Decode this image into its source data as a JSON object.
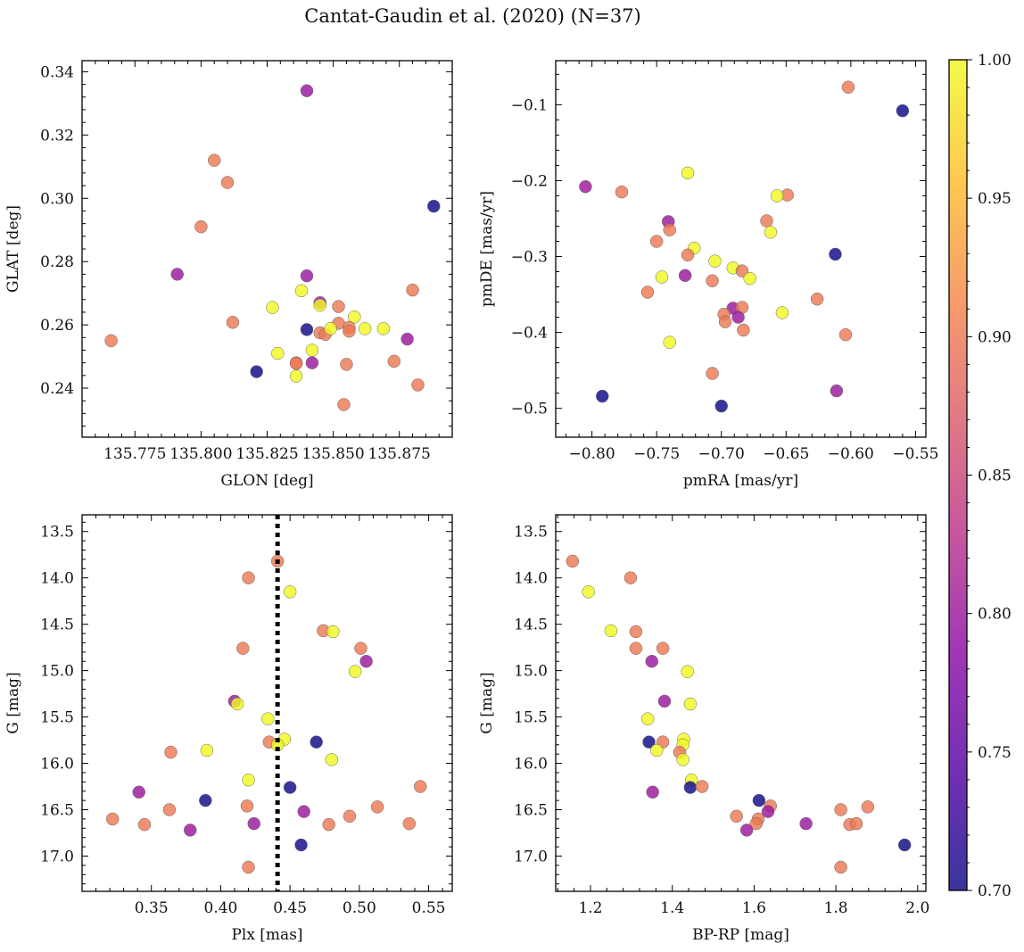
{
  "figure": {
    "title": "Cantat-Gaudin et al. (2020) (N=37)"
  },
  "colorbar": {
    "min": 0.7,
    "max": 1.0,
    "ticks": [
      "0.70",
      "0.75",
      "0.80",
      "0.85",
      "0.90",
      "0.95",
      "1.00"
    ],
    "tick_values": [
      0.7,
      0.75,
      0.8,
      0.85,
      0.9,
      0.95,
      1.0
    ],
    "colormap": "plasma",
    "stops": [
      "#0d0887",
      "#5302a3",
      "#8b0aa5",
      "#b83289",
      "#db5c68",
      "#f48849",
      "#febd2a",
      "#f0f921"
    ]
  },
  "chart_data": [
    {
      "type": "scatter",
      "name": "glon-glat",
      "xlabel": "GLON [deg]",
      "ylabel": "GLAT [deg]",
      "xlim": [
        135.755,
        135.895
      ],
      "ylim": [
        0.2245,
        0.3435
      ],
      "xticks": [
        135.775,
        135.8,
        135.825,
        135.85,
        135.875
      ],
      "xtick_labels": [
        "135.775",
        "135.800",
        "135.825",
        "135.850",
        "135.875"
      ],
      "yticks": [
        0.24,
        0.26,
        0.28,
        0.3,
        0.32,
        0.34
      ],
      "ytick_labels": [
        "0.24",
        "0.26",
        "0.28",
        "0.30",
        "0.32",
        "0.34"
      ],
      "points": [
        {
          "x": 135.766,
          "y": 0.255,
          "c": 0.9
        },
        {
          "x": 135.805,
          "y": 0.312,
          "c": 0.9
        },
        {
          "x": 135.81,
          "y": 0.305,
          "c": 0.9
        },
        {
          "x": 135.8,
          "y": 0.291,
          "c": 0.9
        },
        {
          "x": 135.791,
          "y": 0.276,
          "c": 0.8
        },
        {
          "x": 135.84,
          "y": 0.334,
          "c": 0.8
        },
        {
          "x": 135.888,
          "y": 0.2975,
          "c": 0.7
        },
        {
          "x": 135.84,
          "y": 0.2755,
          "c": 0.8
        },
        {
          "x": 135.812,
          "y": 0.2608,
          "c": 0.9
        },
        {
          "x": 135.827,
          "y": 0.2655,
          "c": 1.0
        },
        {
          "x": 135.838,
          "y": 0.2708,
          "c": 1.0
        },
        {
          "x": 135.845,
          "y": 0.267,
          "c": 0.8
        },
        {
          "x": 135.84,
          "y": 0.2585,
          "c": 0.7
        },
        {
          "x": 135.845,
          "y": 0.2575,
          "c": 0.9
        },
        {
          "x": 135.845,
          "y": 0.2662,
          "c": 1.0
        },
        {
          "x": 135.852,
          "y": 0.2658,
          "c": 0.9
        },
        {
          "x": 135.858,
          "y": 0.2625,
          "c": 1.0
        },
        {
          "x": 135.852,
          "y": 0.2605,
          "c": 0.9
        },
        {
          "x": 135.856,
          "y": 0.2592,
          "c": 0.9
        },
        {
          "x": 135.847,
          "y": 0.257,
          "c": 0.9
        },
        {
          "x": 135.849,
          "y": 0.2588,
          "c": 1.0
        },
        {
          "x": 135.862,
          "y": 0.2588,
          "c": 1.0
        },
        {
          "x": 135.869,
          "y": 0.2588,
          "c": 1.0
        },
        {
          "x": 135.856,
          "y": 0.258,
          "c": 0.9
        },
        {
          "x": 135.88,
          "y": 0.271,
          "c": 0.9
        },
        {
          "x": 135.878,
          "y": 0.2555,
          "c": 0.8
        },
        {
          "x": 135.829,
          "y": 0.251,
          "c": 1.0
        },
        {
          "x": 135.842,
          "y": 0.252,
          "c": 1.0
        },
        {
          "x": 135.836,
          "y": 0.248,
          "c": 0.9
        },
        {
          "x": 135.836,
          "y": 0.2478,
          "c": 0.9
        },
        {
          "x": 135.842,
          "y": 0.248,
          "c": 0.8
        },
        {
          "x": 135.855,
          "y": 0.2475,
          "c": 0.9
        },
        {
          "x": 135.873,
          "y": 0.2485,
          "c": 0.9
        },
        {
          "x": 135.882,
          "y": 0.241,
          "c": 0.9
        },
        {
          "x": 135.821,
          "y": 0.2452,
          "c": 0.7
        },
        {
          "x": 135.836,
          "y": 0.2438,
          "c": 1.0
        },
        {
          "x": 135.854,
          "y": 0.2348,
          "c": 0.9
        }
      ]
    },
    {
      "type": "scatter",
      "name": "pmra-pmde",
      "xlabel": "pmRA [mas/yr]",
      "ylabel": "pmDE [mas/yr]",
      "xlim": [
        -0.828,
        -0.542
      ],
      "ylim": [
        -0.538,
        -0.042
      ],
      "xticks": [
        -0.8,
        -0.75,
        -0.7,
        -0.65,
        -0.6,
        -0.55
      ],
      "xtick_labels": [
        "−0.80",
        "−0.75",
        "−0.70",
        "−0.65",
        "−0.60",
        "−0.55"
      ],
      "yticks": [
        -0.5,
        -0.4,
        -0.3,
        -0.2,
        -0.1
      ],
      "ytick_labels": [
        "−0.5",
        "−0.4",
        "−0.3",
        "−0.2",
        "−0.1"
      ],
      "points": [
        {
          "x": -0.602,
          "y": -0.077,
          "c": 0.9
        },
        {
          "x": -0.56,
          "y": -0.108,
          "c": 0.7
        },
        {
          "x": -0.726,
          "y": -0.19,
          "c": 1.0
        },
        {
          "x": -0.805,
          "y": -0.208,
          "c": 0.8
        },
        {
          "x": -0.777,
          "y": -0.215,
          "c": 0.9
        },
        {
          "x": -0.649,
          "y": -0.219,
          "c": 0.9
        },
        {
          "x": -0.657,
          "y": -0.22,
          "c": 1.0
        },
        {
          "x": -0.741,
          "y": -0.254,
          "c": 0.8
        },
        {
          "x": -0.665,
          "y": -0.253,
          "c": 0.9
        },
        {
          "x": -0.74,
          "y": -0.265,
          "c": 0.9
        },
        {
          "x": -0.662,
          "y": -0.268,
          "c": 1.0
        },
        {
          "x": -0.75,
          "y": -0.28,
          "c": 0.9
        },
        {
          "x": -0.721,
          "y": -0.289,
          "c": 1.0
        },
        {
          "x": -0.726,
          "y": -0.298,
          "c": 0.9
        },
        {
          "x": -0.612,
          "y": -0.297,
          "c": 0.7
        },
        {
          "x": -0.705,
          "y": -0.306,
          "c": 1.0
        },
        {
          "x": -0.691,
          "y": -0.315,
          "c": 1.0
        },
        {
          "x": -0.684,
          "y": -0.319,
          "c": 0.9
        },
        {
          "x": -0.746,
          "y": -0.327,
          "c": 1.0
        },
        {
          "x": -0.728,
          "y": -0.325,
          "c": 0.8
        },
        {
          "x": -0.678,
          "y": -0.329,
          "c": 1.0
        },
        {
          "x": -0.707,
          "y": -0.332,
          "c": 0.9
        },
        {
          "x": -0.757,
          "y": -0.347,
          "c": 0.9
        },
        {
          "x": -0.626,
          "y": -0.356,
          "c": 0.9
        },
        {
          "x": -0.691,
          "y": -0.368,
          "c": 0.8
        },
        {
          "x": -0.684,
          "y": -0.367,
          "c": 0.9
        },
        {
          "x": -0.653,
          "y": -0.374,
          "c": 1.0
        },
        {
          "x": -0.698,
          "y": -0.376,
          "c": 0.9
        },
        {
          "x": -0.687,
          "y": -0.38,
          "c": 0.8
        },
        {
          "x": -0.697,
          "y": -0.386,
          "c": 0.9
        },
        {
          "x": -0.683,
          "y": -0.397,
          "c": 0.9
        },
        {
          "x": -0.604,
          "y": -0.403,
          "c": 0.9
        },
        {
          "x": -0.74,
          "y": -0.413,
          "c": 1.0
        },
        {
          "x": -0.707,
          "y": -0.454,
          "c": 0.9
        },
        {
          "x": -0.611,
          "y": -0.477,
          "c": 0.8
        },
        {
          "x": -0.792,
          "y": -0.484,
          "c": 0.7
        },
        {
          "x": -0.7,
          "y": -0.497,
          "c": 0.7
        }
      ]
    },
    {
      "type": "scatter",
      "name": "plx-g",
      "xlabel": "Plx [mas]",
      "ylabel": "G [mag]",
      "xlim": [
        0.3,
        0.567
      ],
      "ylim": [
        17.38,
        13.32
      ],
      "y_inverted": true,
      "xticks": [
        0.35,
        0.4,
        0.45,
        0.5,
        0.55
      ],
      "xtick_labels": [
        "0.35",
        "0.40",
        "0.45",
        "0.50",
        "0.55"
      ],
      "yticks": [
        13.5,
        14.0,
        14.5,
        15.0,
        15.5,
        16.0,
        16.5,
        17.0
      ],
      "ytick_labels": [
        "13.5",
        "14.0",
        "14.5",
        "15.0",
        "15.5",
        "16.0",
        "16.5",
        "17.0"
      ],
      "vline": 0.441,
      "points": [
        {
          "x": 0.441,
          "y": 13.82,
          "c": 0.9
        },
        {
          "x": 0.42,
          "y": 14.0,
          "c": 0.9
        },
        {
          "x": 0.45,
          "y": 14.15,
          "c": 1.0
        },
        {
          "x": 0.474,
          "y": 14.57,
          "c": 0.9
        },
        {
          "x": 0.481,
          "y": 14.58,
          "c": 1.0
        },
        {
          "x": 0.416,
          "y": 14.76,
          "c": 0.9
        },
        {
          "x": 0.501,
          "y": 14.76,
          "c": 0.9
        },
        {
          "x": 0.505,
          "y": 14.9,
          "c": 0.8
        },
        {
          "x": 0.497,
          "y": 15.01,
          "c": 1.0
        },
        {
          "x": 0.41,
          "y": 15.33,
          "c": 0.8
        },
        {
          "x": 0.412,
          "y": 15.36,
          "c": 1.0
        },
        {
          "x": 0.434,
          "y": 15.52,
          "c": 1.0
        },
        {
          "x": 0.446,
          "y": 15.74,
          "c": 1.0
        },
        {
          "x": 0.435,
          "y": 15.77,
          "c": 0.9
        },
        {
          "x": 0.469,
          "y": 15.77,
          "c": 0.7
        },
        {
          "x": 0.441,
          "y": 15.8,
          "c": 1.0
        },
        {
          "x": 0.39,
          "y": 15.86,
          "c": 1.0
        },
        {
          "x": 0.364,
          "y": 15.88,
          "c": 0.9
        },
        {
          "x": 0.48,
          "y": 15.96,
          "c": 1.0
        },
        {
          "x": 0.42,
          "y": 16.18,
          "c": 1.0
        },
        {
          "x": 0.544,
          "y": 16.25,
          "c": 0.9
        },
        {
          "x": 0.45,
          "y": 16.26,
          "c": 0.7
        },
        {
          "x": 0.341,
          "y": 16.31,
          "c": 0.8
        },
        {
          "x": 0.389,
          "y": 16.4,
          "c": 0.7
        },
        {
          "x": 0.419,
          "y": 16.46,
          "c": 0.9
        },
        {
          "x": 0.513,
          "y": 16.47,
          "c": 0.9
        },
        {
          "x": 0.363,
          "y": 16.5,
          "c": 0.9
        },
        {
          "x": 0.46,
          "y": 16.52,
          "c": 0.8
        },
        {
          "x": 0.493,
          "y": 16.57,
          "c": 0.9
        },
        {
          "x": 0.322,
          "y": 16.6,
          "c": 0.9
        },
        {
          "x": 0.424,
          "y": 16.65,
          "c": 0.8
        },
        {
          "x": 0.478,
          "y": 16.66,
          "c": 0.9
        },
        {
          "x": 0.345,
          "y": 16.66,
          "c": 0.9
        },
        {
          "x": 0.536,
          "y": 16.65,
          "c": 0.9
        },
        {
          "x": 0.378,
          "y": 16.72,
          "c": 0.8
        },
        {
          "x": 0.458,
          "y": 16.88,
          "c": 0.7
        },
        {
          "x": 0.42,
          "y": 17.12,
          "c": 0.9
        }
      ]
    },
    {
      "type": "scatter",
      "name": "bprp-g",
      "xlabel": "BP-RP [mag]",
      "ylabel": "G [mag]",
      "xlim": [
        1.115,
        2.02
      ],
      "ylim": [
        17.38,
        13.32
      ],
      "y_inverted": true,
      "xticks": [
        1.2,
        1.4,
        1.6,
        1.8,
        2.0
      ],
      "xtick_labels": [
        "1.2",
        "1.4",
        "1.6",
        "1.8",
        "2.0"
      ],
      "yticks": [
        13.5,
        14.0,
        14.5,
        15.0,
        15.5,
        16.0,
        16.5,
        17.0
      ],
      "ytick_labels": [
        "13.5",
        "14.0",
        "14.5",
        "15.0",
        "15.5",
        "16.0",
        "16.5",
        "17.0"
      ],
      "points": [
        {
          "x": 1.156,
          "y": 13.82,
          "c": 0.9
        },
        {
          "x": 1.195,
          "y": 14.15,
          "c": 1.0
        },
        {
          "x": 1.298,
          "y": 14.0,
          "c": 0.9
        },
        {
          "x": 1.25,
          "y": 14.57,
          "c": 1.0
        },
        {
          "x": 1.311,
          "y": 14.58,
          "c": 0.9
        },
        {
          "x": 1.311,
          "y": 14.76,
          "c": 0.9
        },
        {
          "x": 1.377,
          "y": 14.76,
          "c": 0.9
        },
        {
          "x": 1.35,
          "y": 14.9,
          "c": 0.8
        },
        {
          "x": 1.437,
          "y": 15.01,
          "c": 1.0
        },
        {
          "x": 1.381,
          "y": 15.33,
          "c": 0.8
        },
        {
          "x": 1.444,
          "y": 15.36,
          "c": 1.0
        },
        {
          "x": 1.34,
          "y": 15.52,
          "c": 1.0
        },
        {
          "x": 1.428,
          "y": 15.74,
          "c": 1.0
        },
        {
          "x": 1.343,
          "y": 15.77,
          "c": 0.7
        },
        {
          "x": 1.377,
          "y": 15.77,
          "c": 0.9
        },
        {
          "x": 1.426,
          "y": 15.8,
          "c": 1.0
        },
        {
          "x": 1.418,
          "y": 15.88,
          "c": 0.9
        },
        {
          "x": 1.362,
          "y": 15.86,
          "c": 1.0
        },
        {
          "x": 1.426,
          "y": 15.96,
          "c": 1.0
        },
        {
          "x": 1.447,
          "y": 16.18,
          "c": 1.0
        },
        {
          "x": 1.444,
          "y": 16.26,
          "c": 0.7
        },
        {
          "x": 1.473,
          "y": 16.25,
          "c": 0.9
        },
        {
          "x": 1.352,
          "y": 16.31,
          "c": 0.8
        },
        {
          "x": 1.612,
          "y": 16.4,
          "c": 0.7
        },
        {
          "x": 1.64,
          "y": 16.46,
          "c": 0.9
        },
        {
          "x": 1.634,
          "y": 16.52,
          "c": 0.8
        },
        {
          "x": 1.812,
          "y": 16.5,
          "c": 0.9
        },
        {
          "x": 1.878,
          "y": 16.47,
          "c": 0.9
        },
        {
          "x": 1.557,
          "y": 16.57,
          "c": 0.9
        },
        {
          "x": 1.61,
          "y": 16.6,
          "c": 0.9
        },
        {
          "x": 1.605,
          "y": 16.65,
          "c": 0.9
        },
        {
          "x": 1.727,
          "y": 16.65,
          "c": 0.8
        },
        {
          "x": 1.834,
          "y": 16.66,
          "c": 0.9
        },
        {
          "x": 1.85,
          "y": 16.65,
          "c": 0.9
        },
        {
          "x": 1.582,
          "y": 16.72,
          "c": 0.8
        },
        {
          "x": 1.968,
          "y": 16.88,
          "c": 0.7
        },
        {
          "x": 1.812,
          "y": 17.12,
          "c": 0.9
        }
      ]
    }
  ]
}
